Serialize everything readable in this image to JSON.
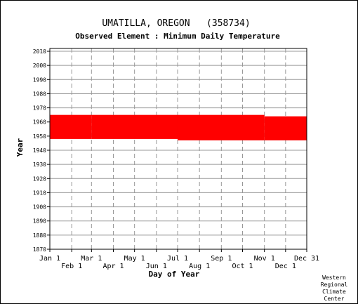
{
  "chart_data": {
    "type": "heatmap",
    "title": "UMATILLA, OREGON   (358734)",
    "subtitle": "Observed Element : Minimum Daily Temperature",
    "xlabel": "Day of Year",
    "ylabel": "Year",
    "credit": [
      "Western",
      "Regional",
      "Climate",
      "Center"
    ],
    "xlim": [
      1,
      365
    ],
    "ylim": [
      1870,
      2012
    ],
    "grid": true,
    "x_ticks_top": [
      {
        "label": "Jan 1",
        "day": 1
      },
      {
        "label": "Mar 1",
        "day": 60
      },
      {
        "label": "May 1",
        "day": 121
      },
      {
        "label": "Jul 1",
        "day": 182
      },
      {
        "label": "Sep 1",
        "day": 244
      },
      {
        "label": "Nov 1",
        "day": 305
      },
      {
        "label": "Dec 31",
        "day": 365
      }
    ],
    "x_ticks_bottom": [
      {
        "label": "Feb 1",
        "day": 32
      },
      {
        "label": "Apr 1",
        "day": 91
      },
      {
        "label": "Jun 1",
        "day": 152
      },
      {
        "label": "Aug 1",
        "day": 213
      },
      {
        "label": "Oct 1",
        "day": 274
      },
      {
        "label": "Dec 1",
        "day": 335
      }
    ],
    "y_ticks": [
      "1870",
      "1880",
      "1890",
      "1900",
      "1910",
      "1920",
      "1930",
      "1940",
      "1950",
      "1960",
      "1970",
      "1980",
      "1990",
      "2000",
      "2010"
    ],
    "series_color": "#ff0000",
    "coverage": [
      {
        "day_start": 1,
        "day_end": 60,
        "year_start": 1948,
        "year_end": 1964
      },
      {
        "day_start": 60,
        "day_end": 182,
        "year_start": 1948,
        "year_end": 1964
      },
      {
        "day_start": 182,
        "day_end": 305,
        "year_start": 1947,
        "year_end": 1964
      },
      {
        "day_start": 305,
        "day_end": 365,
        "year_start": 1947,
        "year_end": 1963
      }
    ]
  }
}
